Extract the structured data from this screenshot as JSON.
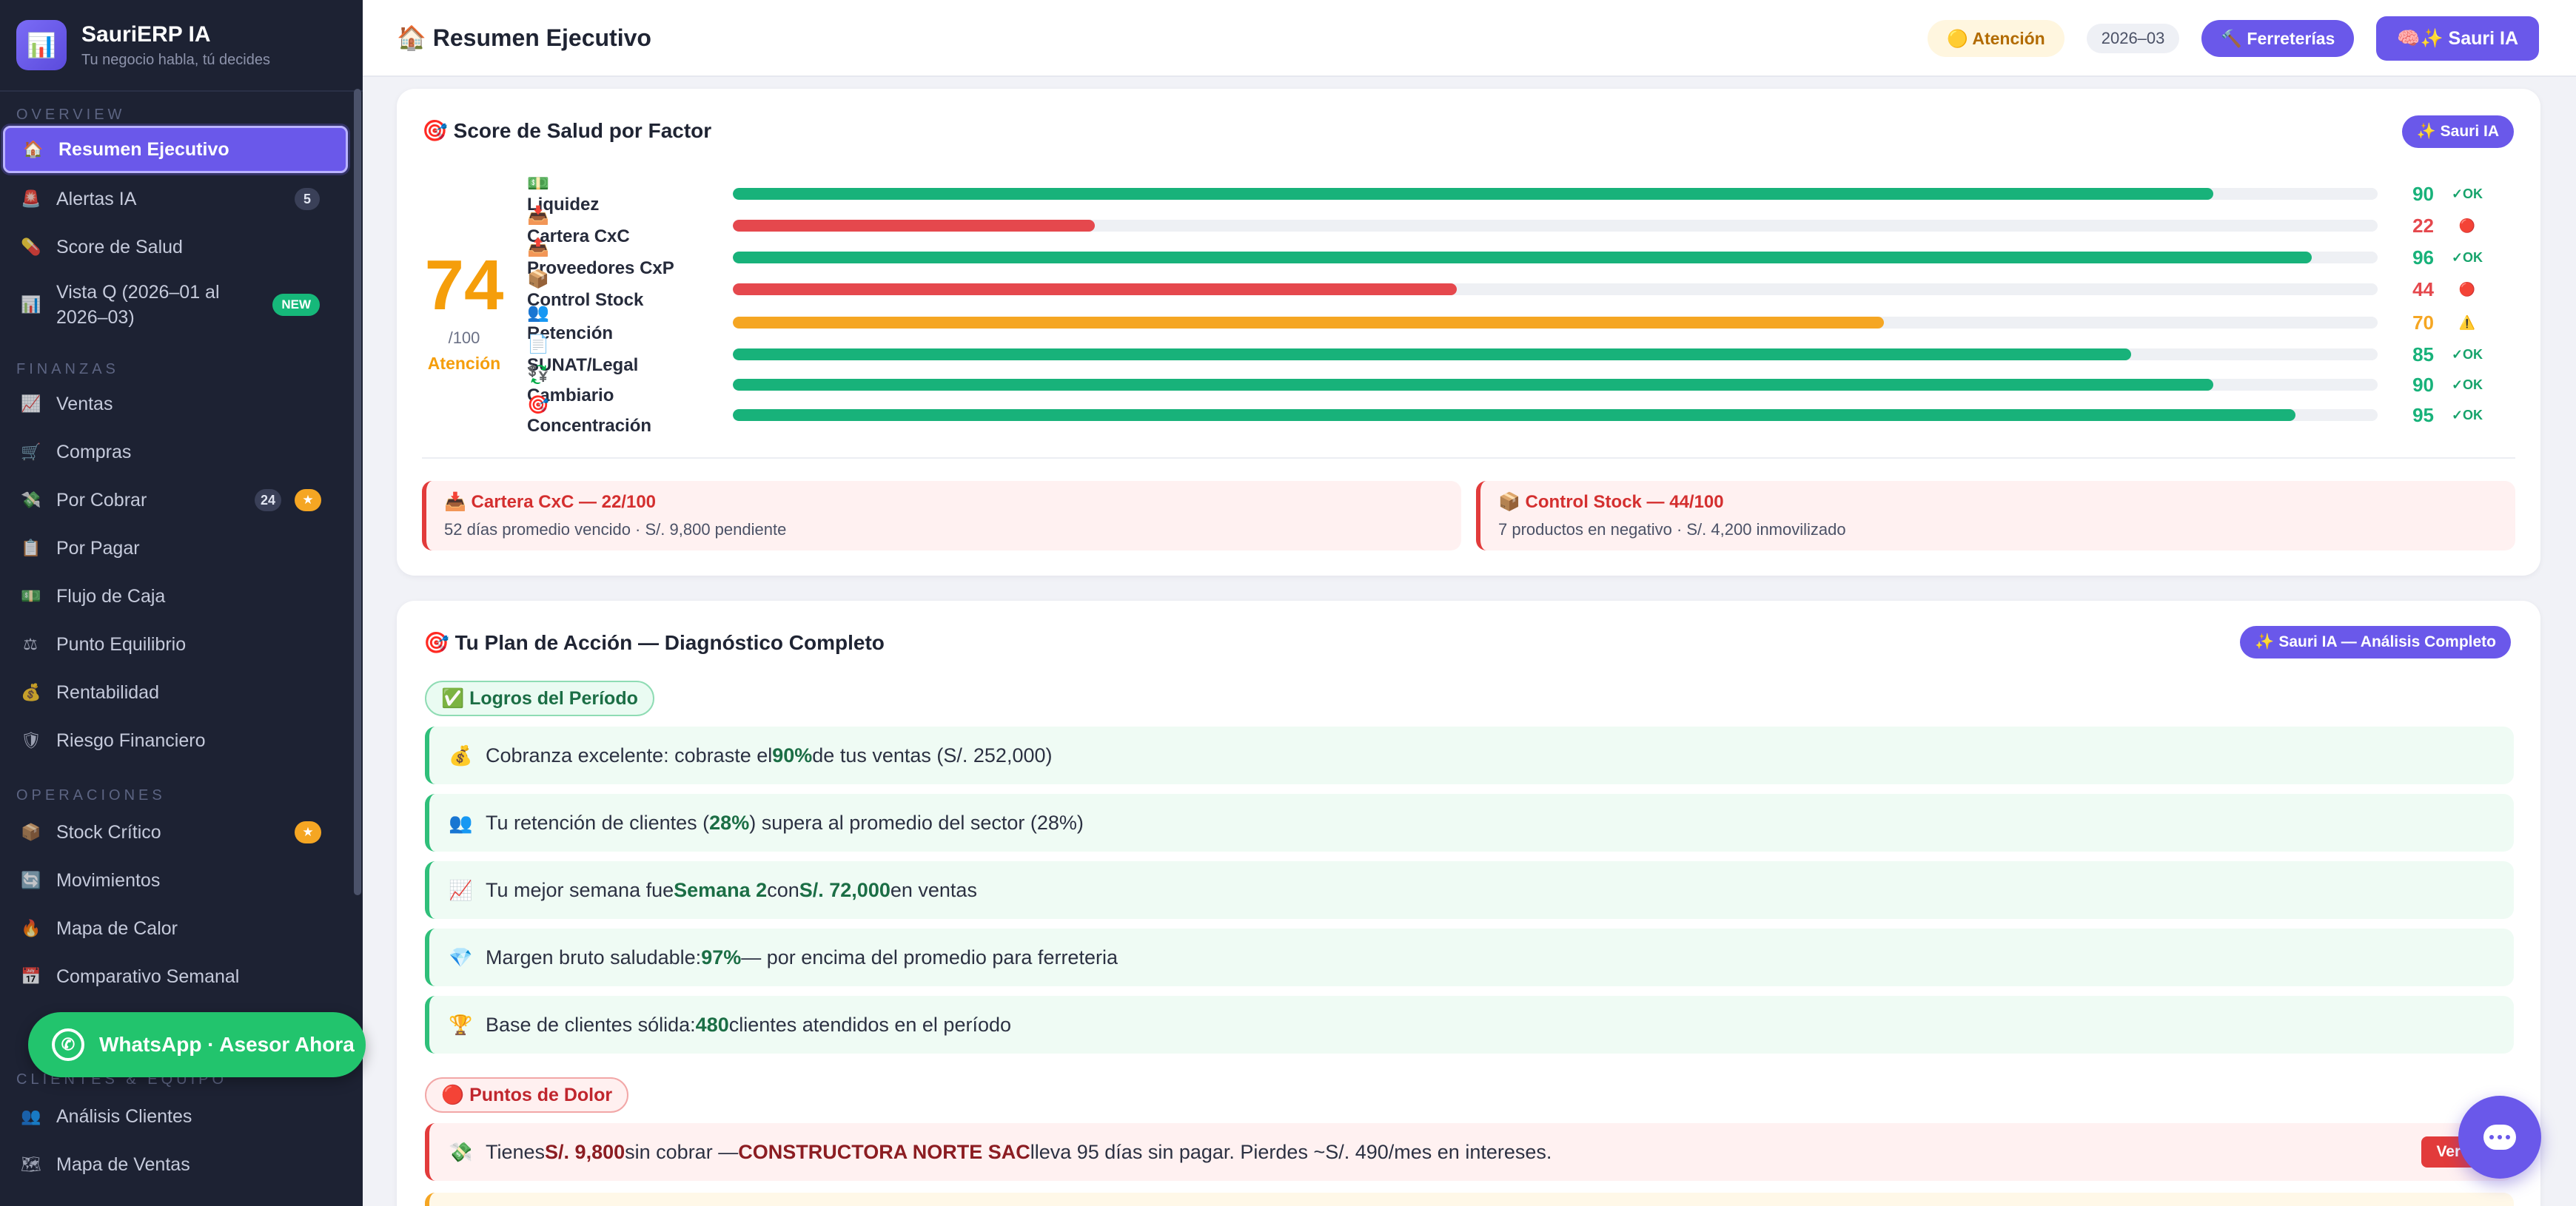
{
  "brand": {
    "name": "SauriERP IA",
    "tagline": "Tu negocio habla, tú decides",
    "logo_icon": "bar-chart-icon"
  },
  "sidebar": {
    "sections": {
      "overview": "OVERVIEW",
      "finanzas": "FINANZAS",
      "operaciones": "OPERACIONES",
      "clientes": "CLIENTES & EQUIPO"
    },
    "items": [
      {
        "label": "Resumen Ejecutivo",
        "icon": "🏠",
        "active": true
      },
      {
        "label": "Alertas IA",
        "icon": "🚨",
        "badge": "5"
      },
      {
        "label": "Score de Salud",
        "icon": "💊"
      },
      {
        "label": "Vista Q (2026–01 al 2026–03)",
        "icon": "📊",
        "badge_new": "NEW"
      },
      {
        "label": "Ventas",
        "icon": "📈"
      },
      {
        "label": "Compras",
        "icon": "🛒"
      },
      {
        "label": "Por Cobrar",
        "icon": "💸",
        "badge": "24",
        "badge_star": "★"
      },
      {
        "label": "Por Pagar",
        "icon": "📋"
      },
      {
        "label": "Flujo de Caja",
        "icon": "💵"
      },
      {
        "label": "Punto Equilibrio",
        "icon": "⚖"
      },
      {
        "label": "Rentabilidad",
        "icon": "💰"
      },
      {
        "label": "Riesgo Financiero",
        "icon": "🛡"
      },
      {
        "label": "Stock Crítico",
        "icon": "📦",
        "badge_star": "★"
      },
      {
        "label": "Movimientos",
        "icon": "🔄"
      },
      {
        "label": "Mapa de Calor",
        "icon": "🔥"
      },
      {
        "label": "Comparativo Semanal",
        "icon": "📅"
      },
      {
        "label": "Análisis Clientes",
        "icon": "👥"
      },
      {
        "label": "Mapa de Ventas",
        "icon": "🗺"
      }
    ],
    "whatsapp_label": "WhatsApp · Asesor Ahora"
  },
  "topbar": {
    "title": "🏠 Resumen Ejecutivo",
    "status_pill": "🟡 Atención",
    "period": "2026–03",
    "ferreterias_button": "🔨 Ferreterías",
    "sauri_button": "🧠✨ Sauri IA"
  },
  "score_card": {
    "title": "🎯 Score de Salud por Factor",
    "button": "✨ Sauri IA",
    "score": "74",
    "denominator": "/100",
    "status": "Atención",
    "factors": [
      {
        "icon": "💵",
        "name": "Liquidez",
        "score": 90,
        "status": "✓OK",
        "level": "ok"
      },
      {
        "icon": "📥",
        "name": "Cartera CxC",
        "score": 22,
        "status": "🔴",
        "level": "bad"
      },
      {
        "icon": "📤",
        "name": "Proveedores CxP",
        "score": 96,
        "status": "✓OK",
        "level": "ok"
      },
      {
        "icon": "📦",
        "name": "Control Stock",
        "score": 44,
        "status": "🔴",
        "level": "bad"
      },
      {
        "icon": "👥",
        "name": "Retención",
        "score": 70,
        "status": "⚠️",
        "level": "warn"
      },
      {
        "icon": "📄",
        "name": "SUNAT/Legal",
        "score": 85,
        "status": "✓OK",
        "level": "ok"
      },
      {
        "icon": "💱",
        "name": "Cambiario",
        "score": 90,
        "status": "✓OK",
        "level": "ok"
      },
      {
        "icon": "🎯",
        "name": "Concentración",
        "score": 95,
        "status": "✓OK",
        "level": "ok"
      }
    ],
    "alerts": [
      {
        "title": "📥 Cartera CxC — 22/100",
        "detail": "52 días promedio vencido · S/. 9,800 pendiente"
      },
      {
        "title": "📦 Control Stock — 44/100",
        "detail": "7 productos en negativo · S/. 4,200 inmovilizado"
      }
    ],
    "colors": {
      "ok": "#18b27a",
      "bad": "#e5484d",
      "warn": "#f5a623"
    }
  },
  "plan_card": {
    "title": "🎯 Tu Plan de Acción — Diagnóstico Completo",
    "button": "✨ Sauri IA — Análisis Completo",
    "achievements_tag": "✅ Logros del Período",
    "achievements": [
      {
        "icon": "💰",
        "pre": "Cobranza excelente: cobraste el ",
        "bold": "90%",
        "post": " de tus ventas (S/. 252,000)"
      },
      {
        "icon": "👥",
        "pre": "Tu retención de clientes (",
        "bold": "28%",
        "post": ") supera al promedio del sector (28%)"
      },
      {
        "icon": "📈",
        "pre": "Tu mejor semana fue ",
        "bold": "Semana 2",
        "mid": " con ",
        "bold2": "S/. 72,000",
        "post": " en ventas"
      },
      {
        "icon": "💎",
        "pre": "Margen bruto saludable: ",
        "bold": "97%",
        "post": " — por encima del promedio para ferreteria"
      },
      {
        "icon": "🏆",
        "pre": "Base de clientes sólida: ",
        "bold": "480",
        "post": " clientes atendidos en el período"
      }
    ],
    "pain_tag": "🔴 Puntos de Dolor",
    "pain": [
      {
        "icon": "💸",
        "pre": "Tienes ",
        "bold": "S/. 9,800",
        "mid": " sin cobrar — ",
        "bold2": "CONSTRUCTORA NORTE SAC",
        "post": " lleva 95 días sin pagar. Pierdes ~S/. 490/mes en intereses.",
        "button": "Ver CxC"
      }
    ]
  },
  "chat_fab_icon": "chat-bubble-icon"
}
